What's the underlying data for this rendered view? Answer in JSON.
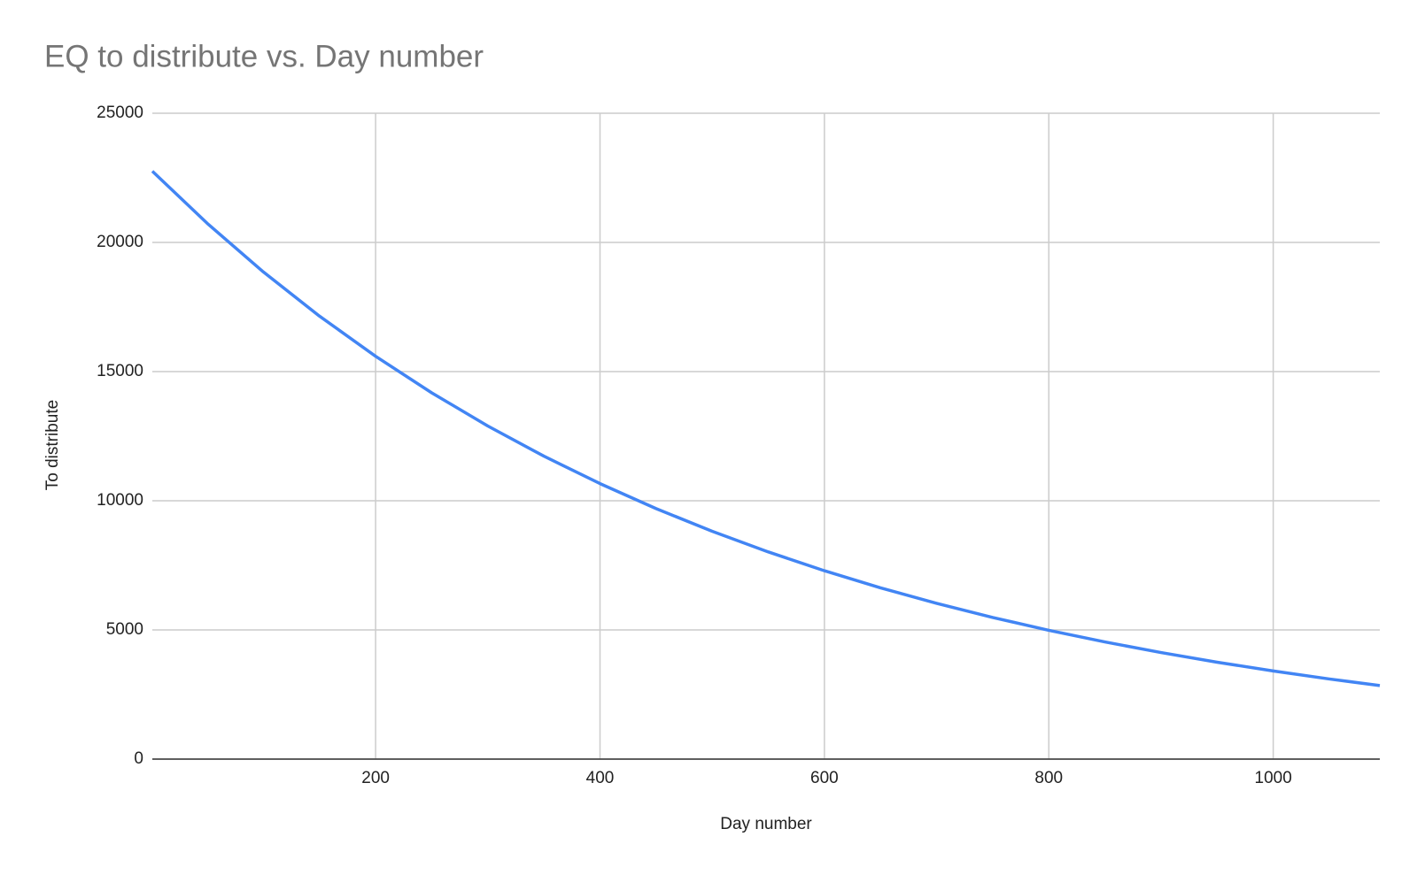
{
  "chart_data": {
    "type": "line",
    "title": "EQ to distribute vs. Day number",
    "x_label": "Day number",
    "y_label": "To distribute",
    "x": [
      1,
      50,
      100,
      150,
      200,
      250,
      300,
      350,
      400,
      450,
      500,
      550,
      600,
      650,
      700,
      750,
      800,
      850,
      900,
      950,
      1000,
      1050,
      1095
    ],
    "series": [
      {
        "name": "To distribute",
        "color": "#4285f4",
        "values": [
          22757,
          20735,
          18855,
          17146,
          15593,
          14179,
          12894,
          11726,
          10664,
          9697,
          8817,
          8019,
          7291,
          6630,
          6031,
          5483,
          4986,
          4535,
          4125,
          3751,
          3411,
          3101,
          2848
        ]
      }
    ],
    "xlim": [
      1,
      1095
    ],
    "xticks": [
      200,
      400,
      600,
      800,
      1000
    ],
    "ylim": [
      0,
      25000
    ],
    "yticks": [
      0,
      5000,
      10000,
      15000,
      20000,
      25000
    ],
    "grid": true
  }
}
